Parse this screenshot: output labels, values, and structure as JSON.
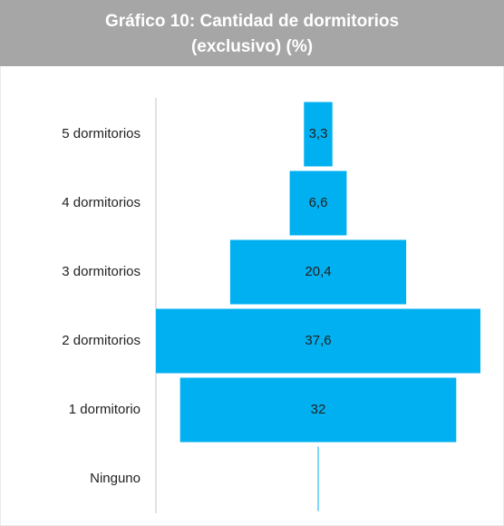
{
  "chart_data": {
    "type": "funnel",
    "title": "Gráfico 10: Cantidad de dormitorios (exclusivo) (%)",
    "categories": [
      "5 dormitorios",
      "4 dormitorios",
      "3 dormitorios",
      "2 dormitorios",
      "1 dormitorio",
      "Ninguno"
    ],
    "values": [
      3.3,
      6.6,
      20.4,
      37.6,
      32,
      0.1
    ],
    "value_labels": [
      "3,3",
      "6,6",
      "20,4",
      "37,6",
      "32",
      null
    ],
    "color": "#00b0f0"
  }
}
